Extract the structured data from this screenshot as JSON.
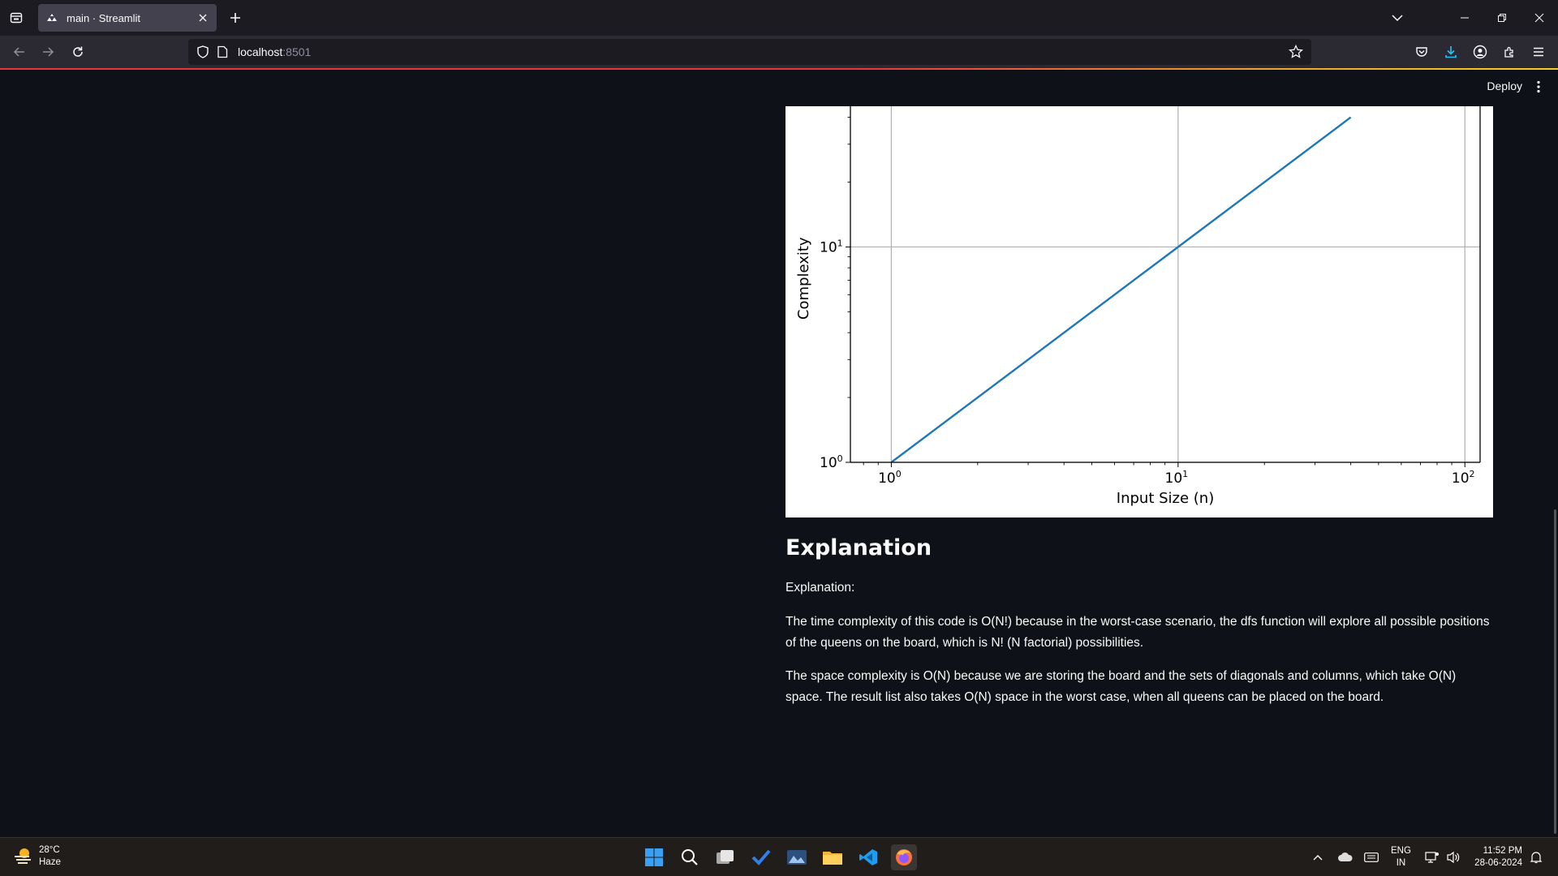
{
  "browser": {
    "tab_title": "main · Streamlit",
    "url_host": "localhost",
    "url_port": ":8501"
  },
  "app": {
    "deploy_label": "Deploy"
  },
  "chart_data": {
    "type": "line",
    "xlabel": "Input Size (n)",
    "ylabel": "Complexity",
    "xscale": "log",
    "yscale": "log",
    "xlim": [
      0.72,
      113
    ],
    "ylim": [
      1,
      45
    ],
    "grid": true,
    "x_ticks": [
      1,
      10,
      100
    ],
    "x_tick_labels": [
      [
        "10",
        "0"
      ],
      [
        "10",
        "1"
      ],
      [
        "10",
        "2"
      ]
    ],
    "y_ticks": [
      1,
      10
    ],
    "y_tick_labels": [
      [
        "10",
        "0"
      ],
      [
        "10",
        "1"
      ]
    ],
    "series": [
      {
        "x": [
          1,
          10,
          40
        ],
        "y": [
          1,
          10,
          40
        ],
        "color": "#1f77b4"
      }
    ]
  },
  "explanation": {
    "heading": "Explanation",
    "intro": "Explanation:",
    "time_para": "The time complexity of this code is O(N!) because in the worst-case scenario, the dfs function will explore all possible positions of the queens on the board, which is N! (N factorial) possibilities.",
    "space_para": "The space complexity is O(N) because we are storing the board and the sets of diagonals and columns, which take O(N) space. The result list also takes O(N) space in the worst case, when all queens can be placed on the board."
  },
  "taskbar": {
    "weather_temp": "28°C",
    "weather_desc": "Haze",
    "lang_line1": "ENG",
    "lang_line2": "IN",
    "time": "11:52 PM",
    "date": "28-06-2024"
  }
}
